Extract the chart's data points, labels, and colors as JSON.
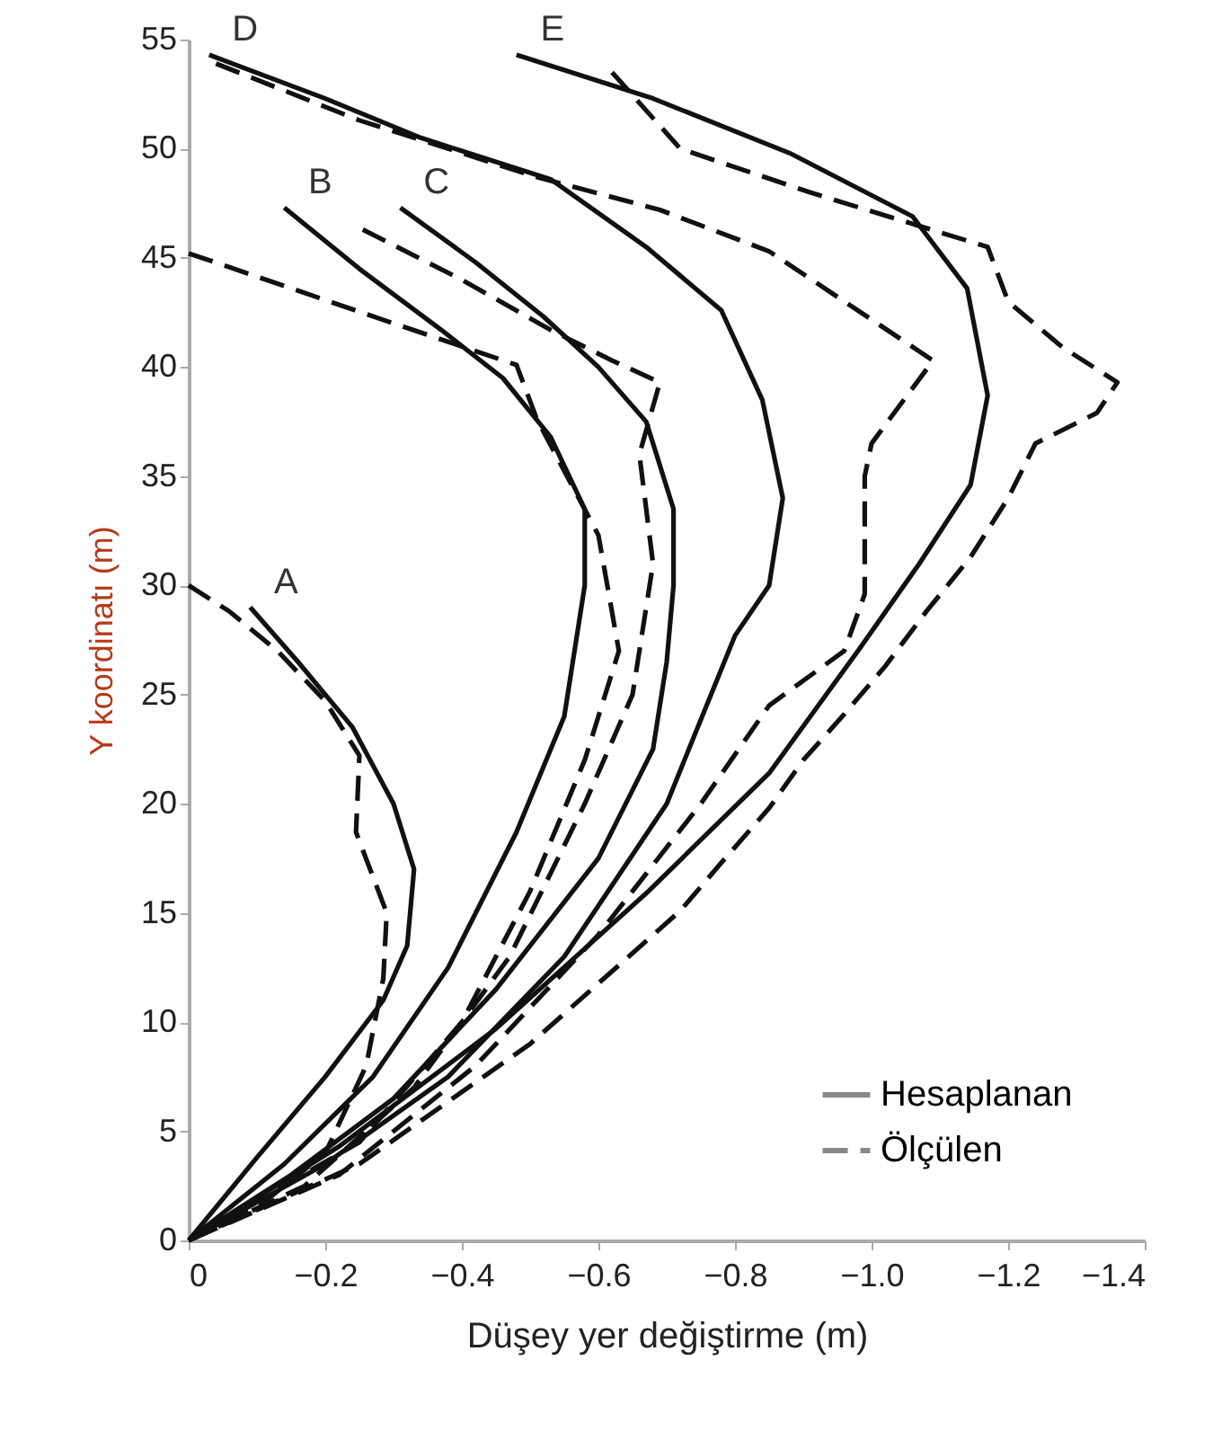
{
  "chart_data": {
    "type": "line",
    "xlabel": "Düşey yer değiştirme (m)",
    "ylabel": "Y koordinatı (m)",
    "xlim": [
      0,
      -1.4
    ],
    "ylim": [
      0,
      55
    ],
    "xticks": [
      {
        "value": 0,
        "label": "0"
      },
      -0.2,
      -0.4,
      -0.6,
      -0.8,
      {
        "value": -1.0,
        "label": "−1.0"
      },
      -1.2,
      -1.4
    ],
    "yticks": [
      0,
      5,
      10,
      15,
      20,
      25,
      30,
      35,
      40,
      45,
      50,
      55
    ],
    "grid": false,
    "legend": "bottom right",
    "marker": "none",
    "annotations": [
      "A",
      "B",
      "C",
      "D",
      "E"
    ],
    "series": [
      {
        "name": "Hesaplanan",
        "color": "#111111",
        "line_style": "solid",
        "x": [
          -0.09,
          -0.16,
          -0.24,
          -0.3,
          -0.33,
          -0.32,
          -0.285,
          -0.2,
          -0.1,
          0
        ],
        "values": [
          29,
          26.5,
          23.5,
          20,
          17,
          13.5,
          11,
          7.5,
          3.8,
          0
        ]
      },
      {
        "name": "Ölçülen",
        "color": "#111111",
        "line_style": "dashed",
        "x": [
          0,
          -0.06,
          -0.13,
          -0.2,
          -0.25,
          -0.245,
          -0.29,
          -0.285,
          -0.26,
          -0.2,
          -0.1,
          0
        ],
        "values": [
          30,
          28.8,
          27,
          24.7,
          22.2,
          18.7,
          15,
          12,
          8,
          4,
          1.5,
          0
        ]
      },
      {
        "color": "#111111",
        "line_style": "solid",
        "x": [
          -0.14,
          -0.25,
          -0.37,
          -0.46,
          -0.53,
          -0.58,
          -0.58,
          -0.55,
          -0.48,
          -0.38,
          -0.27,
          -0.14,
          0
        ],
        "values": [
          47.3,
          44.5,
          41.7,
          39.5,
          36.8,
          33.5,
          30,
          24,
          18.7,
          12.5,
          7.5,
          3.5,
          0
        ]
      },
      {
        "color": "#111111",
        "line_style": "dashed",
        "x": [
          0,
          -0.02,
          -0.3,
          -0.48,
          -0.51,
          -0.6,
          -0.63,
          -0.58,
          -0.5,
          -0.4,
          -0.25,
          0
        ],
        "values": [
          45.2,
          45,
          42,
          40.1,
          37.6,
          32.3,
          27,
          22,
          16,
          10,
          4.5,
          0
        ]
      },
      {
        "color": "#111111",
        "line_style": "solid",
        "x": [
          -0.31,
          -0.42,
          -0.52,
          -0.6,
          -0.67,
          -0.71,
          -0.71,
          -0.7,
          -0.68,
          -0.6,
          -0.45,
          -0.3,
          -0.15,
          0
        ],
        "values": [
          47.3,
          44.8,
          42.3,
          40,
          37.5,
          33.5,
          30,
          26.5,
          22.5,
          17.5,
          11.5,
          6.5,
          3,
          0
        ]
      },
      {
        "color": "#111111",
        "line_style": "dashed",
        "x": [
          -0.255,
          -0.4,
          -0.53,
          -0.62,
          -0.69,
          -0.66,
          -0.68,
          -0.65,
          -0.58,
          -0.47,
          -0.33,
          -0.17,
          0
        ],
        "values": [
          46.3,
          44,
          41.7,
          40.3,
          39.3,
          36,
          31,
          25,
          20,
          13,
          7,
          2.5,
          0
        ]
      },
      {
        "color": "#111111",
        "line_style": "solid",
        "x": [
          -0.03,
          -0.2,
          -0.34,
          -0.53,
          -0.67,
          -0.78,
          -0.84,
          -0.87,
          -0.85,
          -0.8,
          -0.7,
          -0.55,
          -0.38,
          -0.2,
          0
        ],
        "values": [
          54.3,
          52.3,
          50.5,
          48.6,
          45.5,
          42.6,
          38.5,
          34,
          30,
          27.7,
          20,
          13,
          7.5,
          3.5,
          0
        ]
      },
      {
        "color": "#111111",
        "line_style": "dashed",
        "x": [
          -0.04,
          -0.25,
          -0.51,
          -0.69,
          -0.85,
          -0.97,
          -1.09,
          -1.0,
          -0.99,
          -0.99,
          -0.96,
          -0.85,
          -0.75,
          -0.6,
          -0.42,
          -0.22,
          0
        ],
        "values": [
          53.9,
          51.3,
          48.7,
          47.2,
          45.3,
          42.8,
          40.3,
          36.5,
          35,
          29.6,
          27,
          24.5,
          20,
          14,
          8,
          3,
          0
        ]
      },
      {
        "color": "#111111",
        "line_style": "solid",
        "x": [
          -0.48,
          -0.68,
          -0.88,
          -1.06,
          -1.14,
          -1.17,
          -1.145,
          -1.07,
          -0.98,
          -0.85,
          -0.67,
          -0.45,
          -0.22,
          0
        ],
        "values": [
          54.3,
          52.3,
          49.8,
          46.9,
          43.6,
          38.7,
          34.6,
          31,
          27,
          21.4,
          15.9,
          9.7,
          4.3,
          0
        ]
      },
      {
        "color": "#111111",
        "line_style": "dashed",
        "x": [
          -0.62,
          -0.72,
          -0.91,
          -1.17,
          -1.2,
          -1.28,
          -1.36,
          -1.33,
          -1.24,
          -1.2,
          -1.145,
          -1.08,
          -1.02,
          -0.96,
          -0.9,
          -0.85,
          -0.78,
          -0.72,
          -0.5,
          -0.25,
          0
        ],
        "values": [
          53.5,
          50,
          48,
          45.5,
          43,
          40.9,
          39.3,
          37.9,
          36.5,
          34,
          31.3,
          28.8,
          26.3,
          24.1,
          22,
          19.8,
          17.3,
          15.1,
          9,
          3.5,
          0
        ]
      }
    ]
  }
}
